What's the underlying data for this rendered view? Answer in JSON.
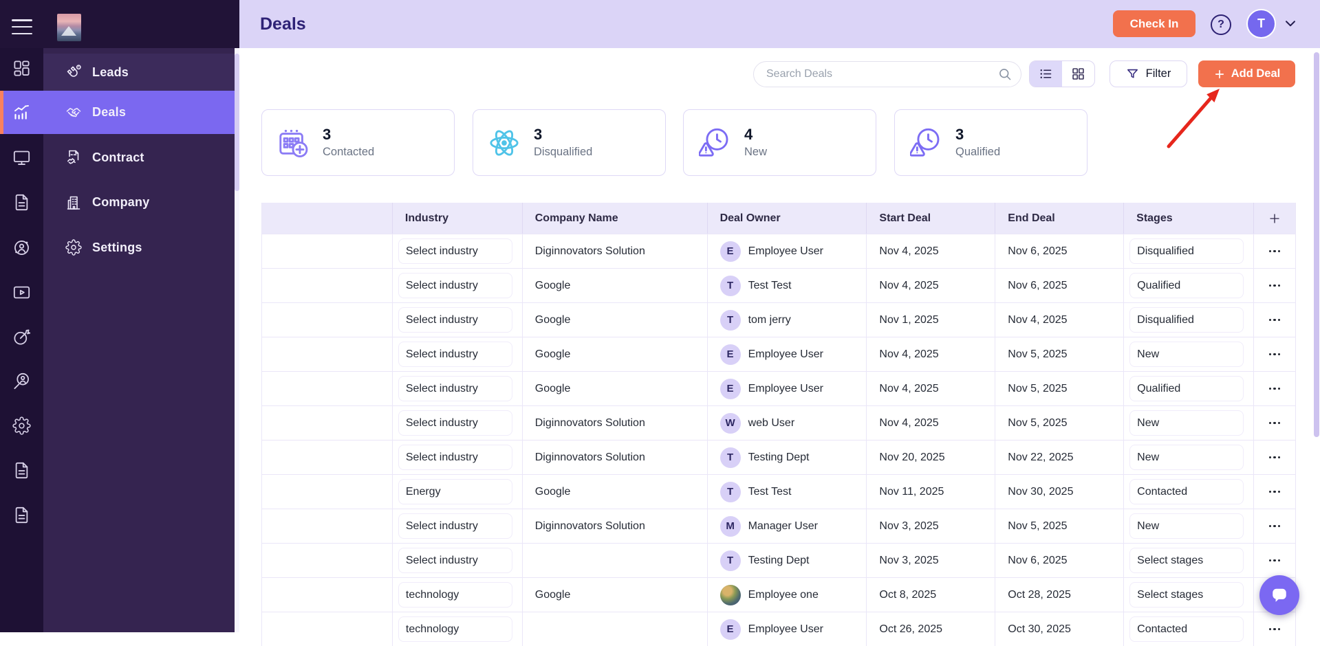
{
  "header": {
    "title": "Deals",
    "check_in": "Check In",
    "avatar_initial": "T",
    "help_glyph": "?"
  },
  "sidebar": {
    "rail": [
      {
        "icon": "dashboard",
        "active": false
      },
      {
        "icon": "analytics",
        "active": true
      },
      {
        "icon": "monitor",
        "active": false
      },
      {
        "icon": "document",
        "active": false
      },
      {
        "icon": "contacts",
        "active": false
      },
      {
        "icon": "video",
        "active": false
      },
      {
        "icon": "target",
        "active": false
      },
      {
        "icon": "search-user",
        "active": false
      },
      {
        "icon": "gear",
        "active": false
      },
      {
        "icon": "document",
        "active": false
      },
      {
        "icon": "document",
        "active": false
      }
    ],
    "menu": [
      {
        "label": "Leads",
        "icon": "magnet",
        "active": false
      },
      {
        "label": "Deals",
        "icon": "handshake",
        "active": true
      },
      {
        "label": "Contract",
        "icon": "contract",
        "active": false
      },
      {
        "label": "Company",
        "icon": "company",
        "active": false
      },
      {
        "label": "Settings",
        "icon": "gear",
        "active": false
      }
    ]
  },
  "toolbar": {
    "search_placeholder": "Search Deals",
    "filter": "Filter",
    "add_deal": "Add Deal",
    "views": [
      "list",
      "grid"
    ],
    "active_view": "list"
  },
  "stats": [
    {
      "value": "3",
      "label": "Contacted",
      "icon": "calendar-plus",
      "color": "#8b7bf5"
    },
    {
      "value": "3",
      "label": "Disqualified",
      "icon": "atom",
      "color": "#4fc3e8"
    },
    {
      "value": "4",
      "label": "New",
      "icon": "clock-alert",
      "color": "#7c6cf4"
    },
    {
      "value": "3",
      "label": "Qualified",
      "icon": "clock-alert",
      "color": "#7c6cf4"
    }
  ],
  "table": {
    "columns": [
      "",
      "Industry",
      "Company Name",
      "Deal Owner",
      "Start Deal",
      "End Deal",
      "Stages",
      "+"
    ],
    "rows": [
      {
        "industry": "Select industry",
        "company": "Diginnovators Solution",
        "owner": "Employee User",
        "initial": "E",
        "avatar": "letter",
        "start": "Nov 4, 2025",
        "end": "Nov 6, 2025",
        "stage": "Disqualified"
      },
      {
        "industry": "Select industry",
        "company": "Google",
        "owner": "Test Test",
        "initial": "T",
        "avatar": "letter",
        "start": "Nov 4, 2025",
        "end": "Nov 6, 2025",
        "stage": "Qualified"
      },
      {
        "industry": "Select industry",
        "company": "Google",
        "owner": "tom jerry",
        "initial": "T",
        "avatar": "letter",
        "start": "Nov 1, 2025",
        "end": "Nov 4, 2025",
        "stage": "Disqualified"
      },
      {
        "industry": "Select industry",
        "company": "Google",
        "owner": "Employee User",
        "initial": "E",
        "avatar": "letter",
        "start": "Nov 4, 2025",
        "end": "Nov 5, 2025",
        "stage": "New"
      },
      {
        "industry": "Select industry",
        "company": "Google",
        "owner": "Employee User",
        "initial": "E",
        "avatar": "letter",
        "start": "Nov 4, 2025",
        "end": "Nov 5, 2025",
        "stage": "Qualified"
      },
      {
        "industry": "Select industry",
        "company": "Diginnovators Solution",
        "owner": "web User",
        "initial": "W",
        "avatar": "letter",
        "start": "Nov 4, 2025",
        "end": "Nov 5, 2025",
        "stage": "New"
      },
      {
        "industry": "Select industry",
        "company": "Diginnovators Solution",
        "owner": "Testing Dept",
        "initial": "T",
        "avatar": "letter",
        "start": "Nov 20, 2025",
        "end": "Nov 22, 2025",
        "stage": "New"
      },
      {
        "industry": "Energy",
        "company": "Google",
        "owner": "Test Test",
        "initial": "T",
        "avatar": "letter",
        "start": "Nov 11, 2025",
        "end": "Nov 30, 2025",
        "stage": "Contacted"
      },
      {
        "industry": "Select industry",
        "company": "Diginnovators Solution",
        "owner": "Manager User",
        "initial": "M",
        "avatar": "letter",
        "start": "Nov 3, 2025",
        "end": "Nov 5, 2025",
        "stage": "New"
      },
      {
        "industry": "Select industry",
        "company": "",
        "owner": "Testing Dept",
        "initial": "T",
        "avatar": "letter",
        "start": "Nov 3, 2025",
        "end": "Nov 6, 2025",
        "stage": "Select stages"
      },
      {
        "industry": "technology",
        "company": "Google",
        "owner": "Employee one",
        "initial": "",
        "avatar": "photo",
        "start": "Oct 8, 2025",
        "end": "Oct 28, 2025",
        "stage": "Select stages"
      },
      {
        "industry": "technology",
        "company": "",
        "owner": "Employee User",
        "initial": "E",
        "avatar": "letter",
        "start": "Oct 26, 2025",
        "end": "Oct 30, 2025",
        "stage": "Contacted"
      }
    ]
  },
  "annotation": {
    "type": "red-arrow",
    "points_to": "Add Deal",
    "color": "#e6261c"
  },
  "colors": {
    "accent_orange": "#f2714d",
    "accent_purple": "#7b68f0",
    "sidebar_rail": "#1e1134",
    "sidebar_panel": "#352450",
    "header_lavender": "#dbd4f7",
    "table_header": "#ece9fa",
    "stat_cyan": "#4fc3e8"
  }
}
